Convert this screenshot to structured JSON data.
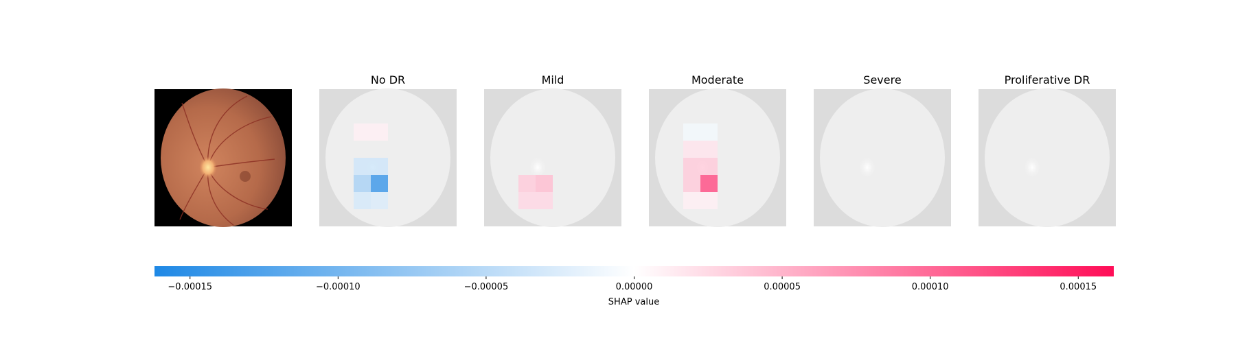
{
  "chart_data": {
    "type": "heatmap",
    "panels": [
      {
        "title": "",
        "kind": "original"
      },
      {
        "title": "No DR",
        "kind": "shap",
        "cells": [
          {
            "r": 1,
            "c": 1,
            "v": 1.2e-05
          },
          {
            "r": 1,
            "c": 2,
            "v": 1.2e-05
          },
          {
            "r": 3,
            "c": 1,
            "v": -4e-05
          },
          {
            "r": 3,
            "c": 2,
            "v": -4e-05
          },
          {
            "r": 4,
            "c": 1,
            "v": -7e-05
          },
          {
            "r": 4,
            "c": 2,
            "v": -0.00016
          },
          {
            "r": 5,
            "c": 1,
            "v": -3.5e-05
          },
          {
            "r": 5,
            "c": 2,
            "v": -3e-05
          }
        ]
      },
      {
        "title": "Mild",
        "kind": "shap",
        "cells": [
          {
            "r": 4,
            "c": 1,
            "v": 4e-05
          },
          {
            "r": 4,
            "c": 2,
            "v": 5e-05
          },
          {
            "r": 5,
            "c": 1,
            "v": 3e-05
          },
          {
            "r": 5,
            "c": 2,
            "v": 3e-05
          }
        ]
      },
      {
        "title": "Moderate",
        "kind": "shap",
        "cells": [
          {
            "r": 1,
            "c": 1,
            "v": -1e-05
          },
          {
            "r": 1,
            "c": 2,
            "v": -1e-05
          },
          {
            "r": 2,
            "c": 1,
            "v": 2e-05
          },
          {
            "r": 2,
            "c": 2,
            "v": 2e-05
          },
          {
            "r": 3,
            "c": 1,
            "v": 4e-05
          },
          {
            "r": 3,
            "c": 2,
            "v": 4e-05
          },
          {
            "r": 4,
            "c": 1,
            "v": 4e-05
          },
          {
            "r": 4,
            "c": 2,
            "v": 0.000135
          },
          {
            "r": 5,
            "c": 1,
            "v": 1.2e-05
          },
          {
            "r": 5,
            "c": 2,
            "v": 1.2e-05
          }
        ]
      },
      {
        "title": "Severe",
        "kind": "shap",
        "cells": []
      },
      {
        "title": "Proliferative DR",
        "kind": "shap",
        "cells": []
      }
    ],
    "colorbar": {
      "label": "SHAP value",
      "vmin": -0.000162,
      "vmax": 0.000162,
      "ticks": [
        -0.00015,
        -0.0001,
        -5e-05,
        0,
        5e-05,
        0.0001,
        0.00015
      ],
      "tick_labels": [
        "−0.00015",
        "−0.00010",
        "−0.00005",
        "0.00000",
        "0.00005",
        "0.00010",
        "0.00015"
      ],
      "color_negative": "#1e88e5",
      "color_positive": "#ff0d57"
    }
  }
}
